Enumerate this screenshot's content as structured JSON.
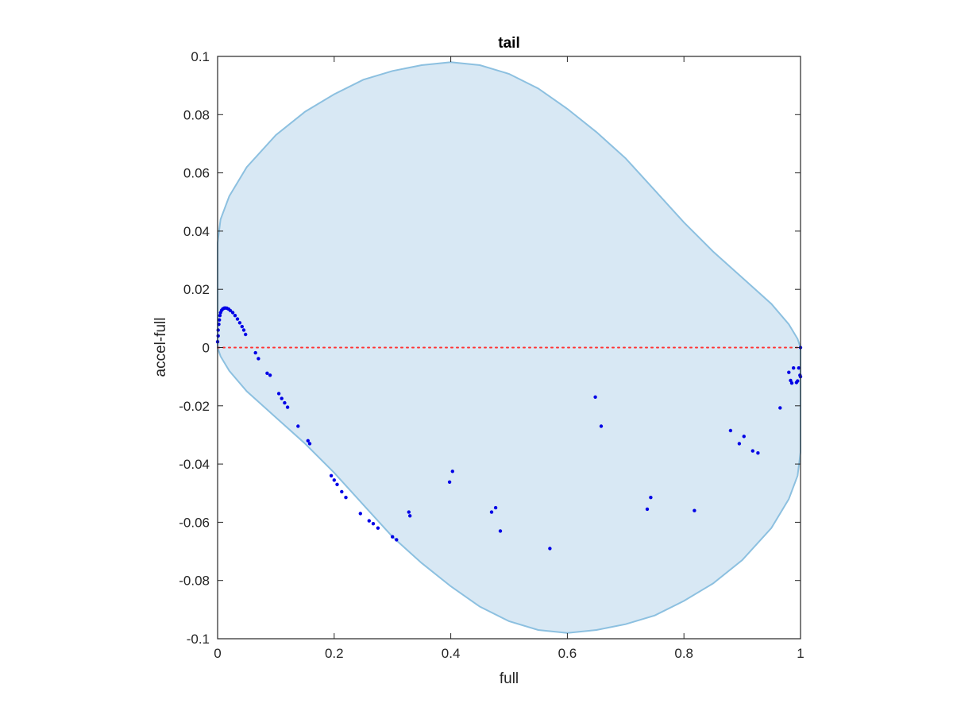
{
  "chart_data": {
    "type": "scatter",
    "title": "tail",
    "xlabel": "full",
    "ylabel": "accel-full",
    "xlim": [
      0,
      1
    ],
    "ylim": [
      -0.1,
      0.1
    ],
    "xticks": [
      0,
      0.2,
      0.4,
      0.6,
      0.8,
      1
    ],
    "xtick_labels": [
      "0",
      "0.2",
      "0.4",
      "0.6",
      "0.8",
      "1"
    ],
    "yticks": [
      -0.1,
      -0.08,
      -0.06,
      -0.04,
      -0.02,
      0,
      0.02,
      0.04,
      0.06,
      0.08,
      0.1
    ],
    "ytick_labels": [
      "-0.1",
      "-0.08",
      "-0.06",
      "-0.04",
      "-0.02",
      "0",
      "0.02",
      "0.04",
      "0.06",
      "0.08",
      "0.1"
    ],
    "grid": false,
    "colors": {
      "region_fill": "#d8e8f4",
      "region_edge": "#8cc0e0",
      "points": "#0000e6",
      "zero_line": "#ff3333",
      "axes": "#262626"
    },
    "reference_line": {
      "y": 0,
      "style": "dotted"
    },
    "region_boundary": {
      "upper": [
        [
          0,
          0.036
        ],
        [
          0.005,
          0.044
        ],
        [
          0.02,
          0.052
        ],
        [
          0.05,
          0.062
        ],
        [
          0.1,
          0.073
        ],
        [
          0.15,
          0.081
        ],
        [
          0.2,
          0.087
        ],
        [
          0.25,
          0.092
        ],
        [
          0.3,
          0.095
        ],
        [
          0.35,
          0.097
        ],
        [
          0.4,
          0.098
        ],
        [
          0.45,
          0.097
        ],
        [
          0.5,
          0.094
        ],
        [
          0.55,
          0.089
        ],
        [
          0.6,
          0.082
        ],
        [
          0.65,
          0.074
        ],
        [
          0.7,
          0.065
        ],
        [
          0.75,
          0.054
        ],
        [
          0.8,
          0.043
        ],
        [
          0.85,
          0.033
        ],
        [
          0.9,
          0.024
        ],
        [
          0.95,
          0.015
        ],
        [
          0.98,
          0.008
        ],
        [
          0.995,
          0.003
        ],
        [
          1.0,
          0
        ]
      ],
      "lower": [
        [
          1.0,
          -0.036
        ],
        [
          0.995,
          -0.044
        ],
        [
          0.98,
          -0.052
        ],
        [
          0.95,
          -0.062
        ],
        [
          0.9,
          -0.073
        ],
        [
          0.85,
          -0.081
        ],
        [
          0.8,
          -0.087
        ],
        [
          0.75,
          -0.092
        ],
        [
          0.7,
          -0.095
        ],
        [
          0.65,
          -0.097
        ],
        [
          0.6,
          -0.098
        ],
        [
          0.55,
          -0.097
        ],
        [
          0.5,
          -0.094
        ],
        [
          0.45,
          -0.089
        ],
        [
          0.4,
          -0.082
        ],
        [
          0.35,
          -0.074
        ],
        [
          0.3,
          -0.065
        ],
        [
          0.25,
          -0.054
        ],
        [
          0.2,
          -0.043
        ],
        [
          0.15,
          -0.033
        ],
        [
          0.1,
          -0.024
        ],
        [
          0.05,
          -0.015
        ],
        [
          0.02,
          -0.008
        ],
        [
          0.005,
          -0.003
        ],
        [
          0.0,
          0
        ]
      ]
    },
    "points": [
      [
        0.0,
        0.002
      ],
      [
        0.001,
        0.004
      ],
      [
        0.001,
        0.006
      ],
      [
        0.002,
        0.008
      ],
      [
        0.003,
        0.0095
      ],
      [
        0.004,
        0.011
      ],
      [
        0.005,
        0.012
      ],
      [
        0.007,
        0.0128
      ],
      [
        0.009,
        0.0133
      ],
      [
        0.011,
        0.0135
      ],
      [
        0.013,
        0.0136
      ],
      [
        0.016,
        0.0135
      ],
      [
        0.019,
        0.0132
      ],
      [
        0.022,
        0.0127
      ],
      [
        0.026,
        0.012
      ],
      [
        0.03,
        0.011
      ],
      [
        0.034,
        0.0098
      ],
      [
        0.038,
        0.0085
      ],
      [
        0.042,
        0.0072
      ],
      [
        0.045,
        0.006
      ],
      [
        0.048,
        0.0045
      ],
      [
        0.065,
        -0.0018
      ],
      [
        0.07,
        -0.0038
      ],
      [
        0.085,
        -0.0088
      ],
      [
        0.09,
        -0.0095
      ],
      [
        0.105,
        -0.0158
      ],
      [
        0.11,
        -0.0175
      ],
      [
        0.115,
        -0.019
      ],
      [
        0.12,
        -0.0205
      ],
      [
        0.138,
        -0.027
      ],
      [
        0.155,
        -0.032
      ],
      [
        0.158,
        -0.033
      ],
      [
        0.195,
        -0.044
      ],
      [
        0.2,
        -0.0455
      ],
      [
        0.205,
        -0.047
      ],
      [
        0.213,
        -0.0495
      ],
      [
        0.22,
        -0.0515
      ],
      [
        0.245,
        -0.057
      ],
      [
        0.26,
        -0.0595
      ],
      [
        0.267,
        -0.0605
      ],
      [
        0.275,
        -0.062
      ],
      [
        0.3,
        -0.065
      ],
      [
        0.307,
        -0.066
      ],
      [
        0.328,
        -0.0565
      ],
      [
        0.33,
        -0.0578
      ],
      [
        0.398,
        -0.0462
      ],
      [
        0.403,
        -0.0425
      ],
      [
        0.47,
        -0.0565
      ],
      [
        0.477,
        -0.055
      ],
      [
        0.485,
        -0.063
      ],
      [
        0.57,
        -0.069
      ],
      [
        0.648,
        -0.017
      ],
      [
        0.658,
        -0.027
      ],
      [
        0.737,
        -0.0555
      ],
      [
        0.743,
        -0.0515
      ],
      [
        0.818,
        -0.056
      ],
      [
        0.88,
        -0.0285
      ],
      [
        0.895,
        -0.033
      ],
      [
        0.903,
        -0.0305
      ],
      [
        0.918,
        -0.0355
      ],
      [
        0.927,
        -0.0362
      ],
      [
        0.965,
        -0.0207
      ],
      [
        0.98,
        -0.0085
      ],
      [
        0.983,
        -0.0113
      ],
      [
        0.985,
        -0.0122
      ],
      [
        0.988,
        -0.007
      ],
      [
        0.993,
        -0.012
      ],
      [
        0.995,
        -0.0115
      ],
      [
        0.997,
        -0.007
      ],
      [
        0.999,
        -0.0095
      ],
      [
        1.0,
        -0.01
      ],
      [
        1.0,
        0.0
      ]
    ]
  }
}
